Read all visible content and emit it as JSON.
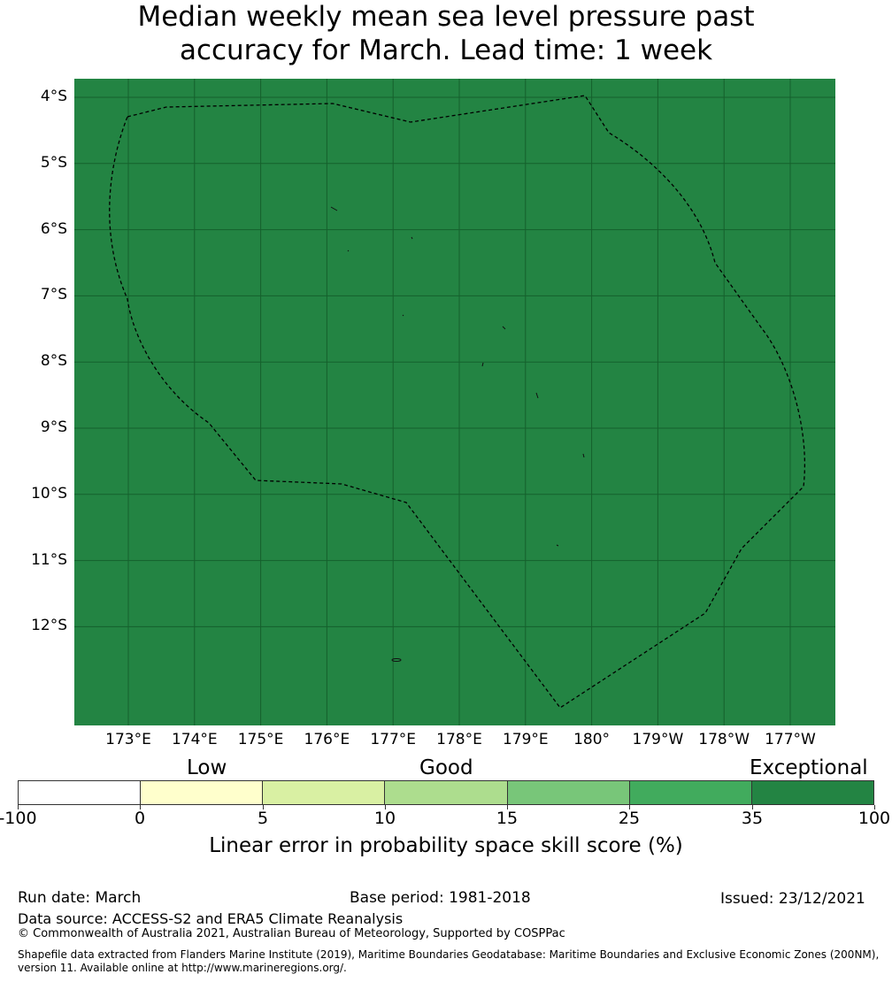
{
  "title": {
    "line1": "Median weekly mean sea level pressure past",
    "line2": "accuracy for March. Lead time: 1 week"
  },
  "map": {
    "fill_color": "#238443",
    "grid_color": "#15602c",
    "lat_labels": [
      "4°S",
      "5°S",
      "6°S",
      "7°S",
      "8°S",
      "9°S",
      "10°S",
      "11°S",
      "12°S"
    ],
    "lon_labels": [
      "173°E",
      "174°E",
      "175°E",
      "176°E",
      "177°E",
      "178°E",
      "179°E",
      "180°",
      "179°W",
      "178°W",
      "177°W"
    ],
    "boundary": {
      "style": "dashed",
      "color": "#000000"
    }
  },
  "colorbar": {
    "categories": [
      "Low",
      "Good",
      "Exceptional"
    ],
    "colors": [
      "#ffffff",
      "#ffffcc",
      "#d9f0a3",
      "#addd8e",
      "#78c679",
      "#41ab5d",
      "#238443"
    ],
    "ticks": [
      "-100",
      "0",
      "5",
      "10",
      "15",
      "25",
      "35",
      "100"
    ],
    "title": "Linear error in probability space skill score (%)"
  },
  "footer": {
    "run_date": "Run date: March",
    "base_period": "Base period: 1981-2018",
    "issued": "Issued: 23/12/2021",
    "data_source": "Data source: ACCESS-S2 and ERA5 Climate Reanalysis",
    "copyright": "© Commonwealth of Australia 2021, Australian Bureau of Meteorology, Supported by COSPPac",
    "shapefile": "Shapefile data extracted from Flanders Marine Institute (2019), Maritime Boundaries Geodatabase: Maritime Boundaries and Exclusive Economic Zones (200NM), version 11. Available online at http://www.marineregions.org/."
  }
}
